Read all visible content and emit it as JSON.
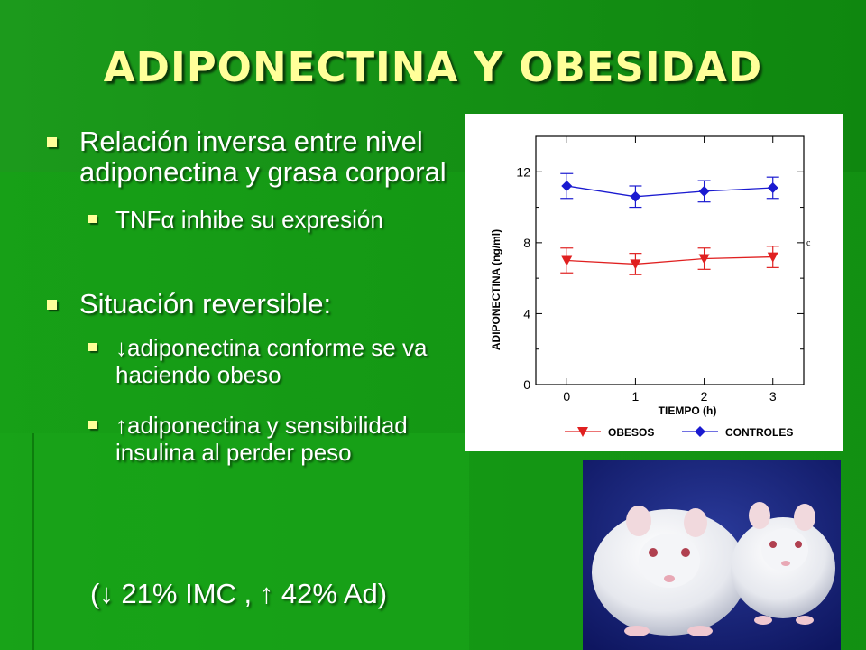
{
  "slide": {
    "title": "ADIPONECTINA Y OBESIDAD",
    "bullets": [
      {
        "text": "Relación inversa entre nivel adiponectina y grasa corporal",
        "sub": [
          "TNFα inhibe su expresión"
        ]
      },
      {
        "text": "Situación reversible:",
        "sub": [
          "↓adiponectina conforme se va haciendo obeso",
          "↑adiponectina y sensibilidad insulina al perder peso"
        ]
      }
    ],
    "footnote": "(↓ 21% IMC , ↑ 42% Ad)"
  },
  "chart_data": {
    "type": "line",
    "xlabel": "TIEMPO (h)",
    "ylabel": "ADIPONECTINA (ng/ml)",
    "x": [
      0,
      1,
      2,
      3
    ],
    "xlim": [
      -0.45,
      3.45
    ],
    "ylim": [
      0,
      14
    ],
    "yticks": [
      0,
      4,
      8,
      12
    ],
    "xticks": [
      0,
      1,
      2,
      3
    ],
    "annotation": "c",
    "legend_position": "bottom",
    "series": [
      {
        "name": "OBESOS",
        "values": [
          7.0,
          6.8,
          7.1,
          7.2
        ],
        "errors": [
          0.7,
          0.6,
          0.6,
          0.6
        ],
        "color": "#e02020",
        "marker": "triangle-down"
      },
      {
        "name": "CONTROLES",
        "values": [
          11.2,
          10.6,
          10.9,
          11.1
        ],
        "errors": [
          0.7,
          0.6,
          0.6,
          0.6
        ],
        "color": "#1a1ad0",
        "marker": "diamond"
      }
    ]
  },
  "photo": {
    "subject": "mice-photo"
  },
  "colors": {
    "title": "#ffff99",
    "text": "#ffffff",
    "background": "#169216"
  }
}
